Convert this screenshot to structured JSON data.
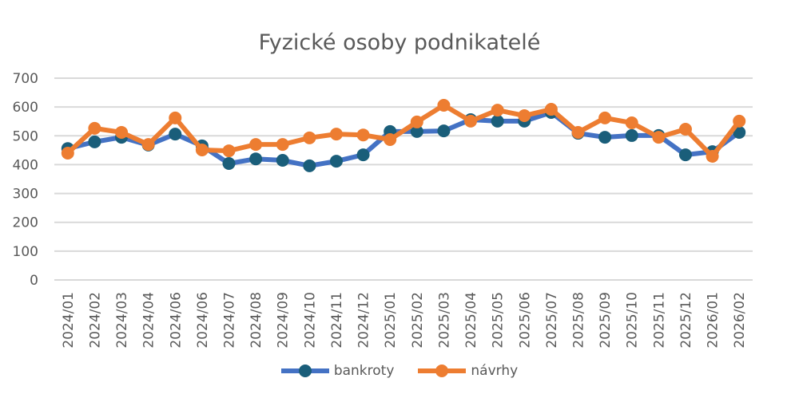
{
  "chart_data": {
    "type": "line",
    "title": "Fyzické osoby podnikatelé",
    "categories": [
      "2024/01",
      "2024/02",
      "2024/03",
      "2024/04",
      "2024/06",
      "2024/06",
      "2024/07",
      "2024/08",
      "2024/09",
      "2024/10",
      "2024/11",
      "2024/12",
      "2025/01",
      "2025/02",
      "2025/03",
      "2025/04",
      "2025/05",
      "2025/06",
      "2025/07",
      "2025/08",
      "2025/09",
      "2025/10",
      "2025/11",
      "2025/12",
      "2026/01",
      "2026/02"
    ],
    "series": [
      {
        "name": "bankroty",
        "line_color": "#4472C4",
        "marker_color": "#1A5E7A",
        "values": [
          456,
          479,
          495,
          468,
          506,
          465,
          404,
          420,
          415,
          396,
          412,
          434,
          515,
          515,
          517,
          556,
          551,
          551,
          581,
          509,
          495,
          501,
          501,
          434,
          445,
          512
        ]
      },
      {
        "name": "návrhy",
        "line_color": "#ED7D31",
        "marker_color": "#ED7D31",
        "values": [
          440,
          526,
          512,
          470,
          562,
          451,
          448,
          470,
          470,
          493,
          506,
          503,
          487,
          548,
          606,
          551,
          589,
          570,
          592,
          512,
          562,
          545,
          495,
          523,
          429,
          551
        ]
      }
    ],
    "ylim": [
      0,
      700
    ],
    "yticks": [
      "0",
      "100",
      "200",
      "300",
      "400",
      "500",
      "600",
      "700"
    ],
    "grid": true,
    "legend_position": "bottom"
  }
}
